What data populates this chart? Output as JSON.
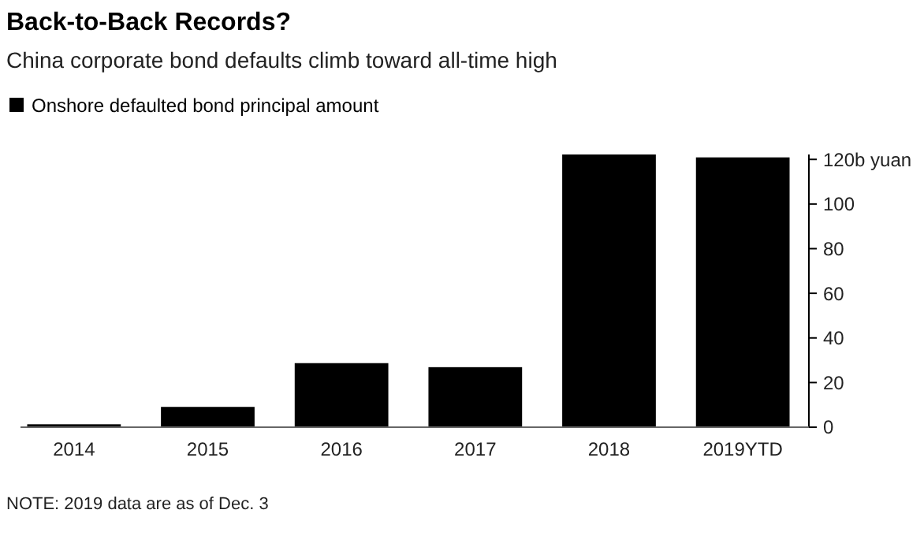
{
  "chart_data": {
    "type": "bar",
    "title": "Back-to-Back Records?",
    "subtitle": "China corporate bond defaults climb toward all-time high",
    "categories": [
      "2014",
      "2015",
      "2016",
      "2017",
      "2018",
      "2019YTD"
    ],
    "series": [
      {
        "name": "Onshore defaulted bond principal amount",
        "color": "#000000",
        "values": [
          1.3,
          9.1,
          28.7,
          26.9,
          122.2,
          120.9
        ]
      }
    ],
    "ylim": [
      0,
      122.2
    ],
    "yticks": [
      0,
      20,
      40,
      60,
      80,
      100,
      {
        "value": 120,
        "label": "120b yuan"
      }
    ],
    "legend": "top left",
    "annotations": [
      "NOTE: 2019 data are as of Dec. 3"
    ]
  }
}
